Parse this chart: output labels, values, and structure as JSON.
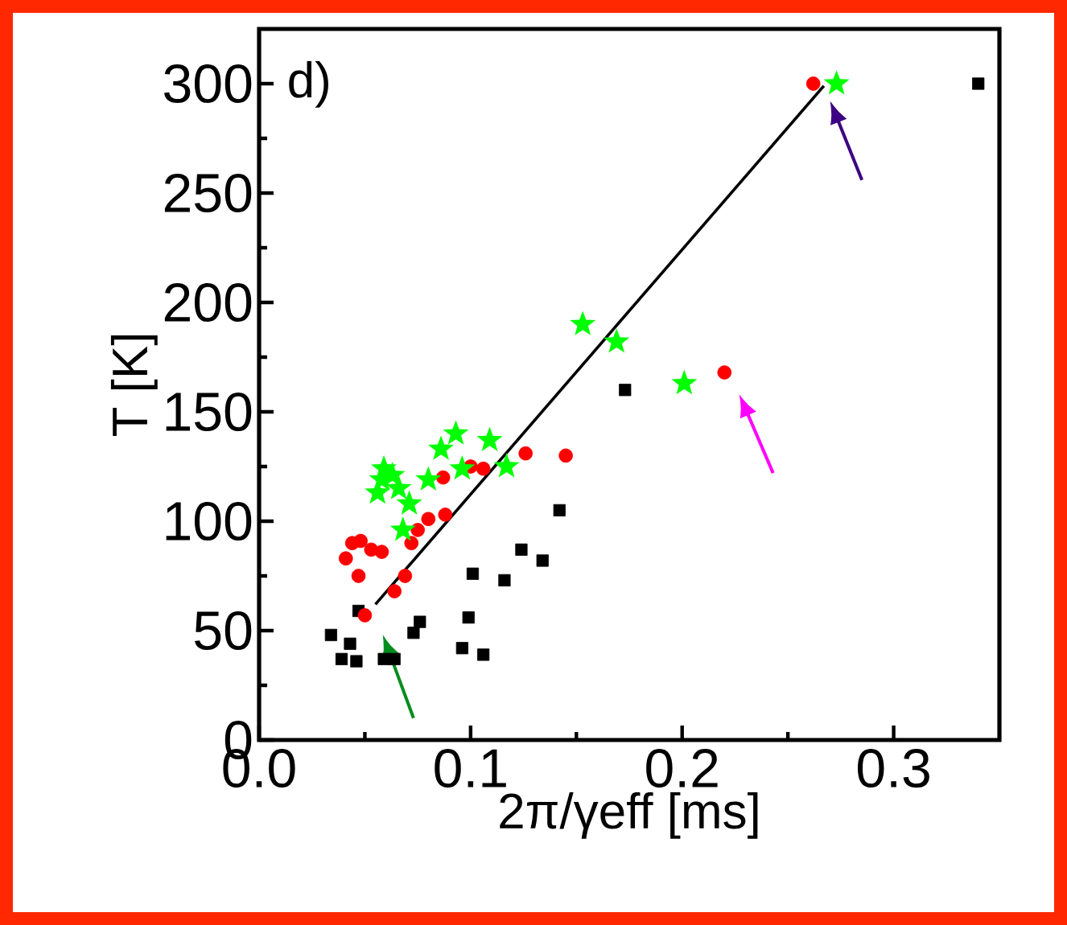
{
  "chart_data": {
    "type": "scatter",
    "xlabel": "2π/γeff [ms]",
    "ylabel": "T [K]",
    "xlim": [
      0,
      0.35
    ],
    "ylim": [
      0,
      325
    ],
    "xticks": [
      {
        "value": 0,
        "label": "0.0"
      },
      0.1,
      0.2,
      0.3
    ],
    "yticks": [
      0,
      50,
      100,
      150,
      200,
      250,
      300
    ],
    "annotations": [
      "d)"
    ],
    "series": [
      {
        "marker": "square",
        "color": "#000000",
        "x": [
          0.034,
          0.043,
          0.039,
          0.046,
          0.047,
          0.059,
          0.064,
          0.073,
          0.076,
          0.096,
          0.099,
          0.101,
          0.106,
          0.116,
          0.124,
          0.134,
          0.142,
          0.173,
          0.34
        ],
        "values": [
          48,
          44,
          37,
          36,
          59,
          37,
          37,
          49,
          54,
          42,
          56,
          76,
          39,
          73,
          87,
          82,
          105,
          160,
          300
        ]
      },
      {
        "marker": "circle",
        "color": "#ff0000",
        "x": [
          0.041,
          0.044,
          0.048,
          0.053,
          0.058,
          0.047,
          0.05,
          0.064,
          0.069,
          0.072,
          0.075,
          0.08,
          0.088,
          0.087,
          0.1,
          0.106,
          0.126,
          0.145,
          0.22,
          0.262
        ],
        "values": [
          83,
          90,
          91,
          87,
          86,
          75,
          57,
          68,
          75,
          90,
          96,
          101,
          103,
          120,
          125,
          124,
          131,
          130,
          168,
          300
        ]
      },
      {
        "marker": "star",
        "color": "#00ff00",
        "x": [
          0.059,
          0.058,
          0.063,
          0.056,
          0.066,
          0.071,
          0.068,
          0.08,
          0.086,
          0.093,
          0.096,
          0.109,
          0.117,
          0.153,
          0.169,
          0.201,
          0.273
        ],
        "values": [
          124,
          119,
          121,
          113,
          115,
          108,
          96,
          119,
          133,
          140,
          124,
          137,
          125,
          190,
          182,
          163,
          300
        ]
      },
      {
        "type": "line",
        "marker": "none",
        "line_style": "solid",
        "color": "#000000",
        "x": [
          0.055,
          0.267
        ],
        "values": [
          62,
          299
        ]
      }
    ]
  }
}
